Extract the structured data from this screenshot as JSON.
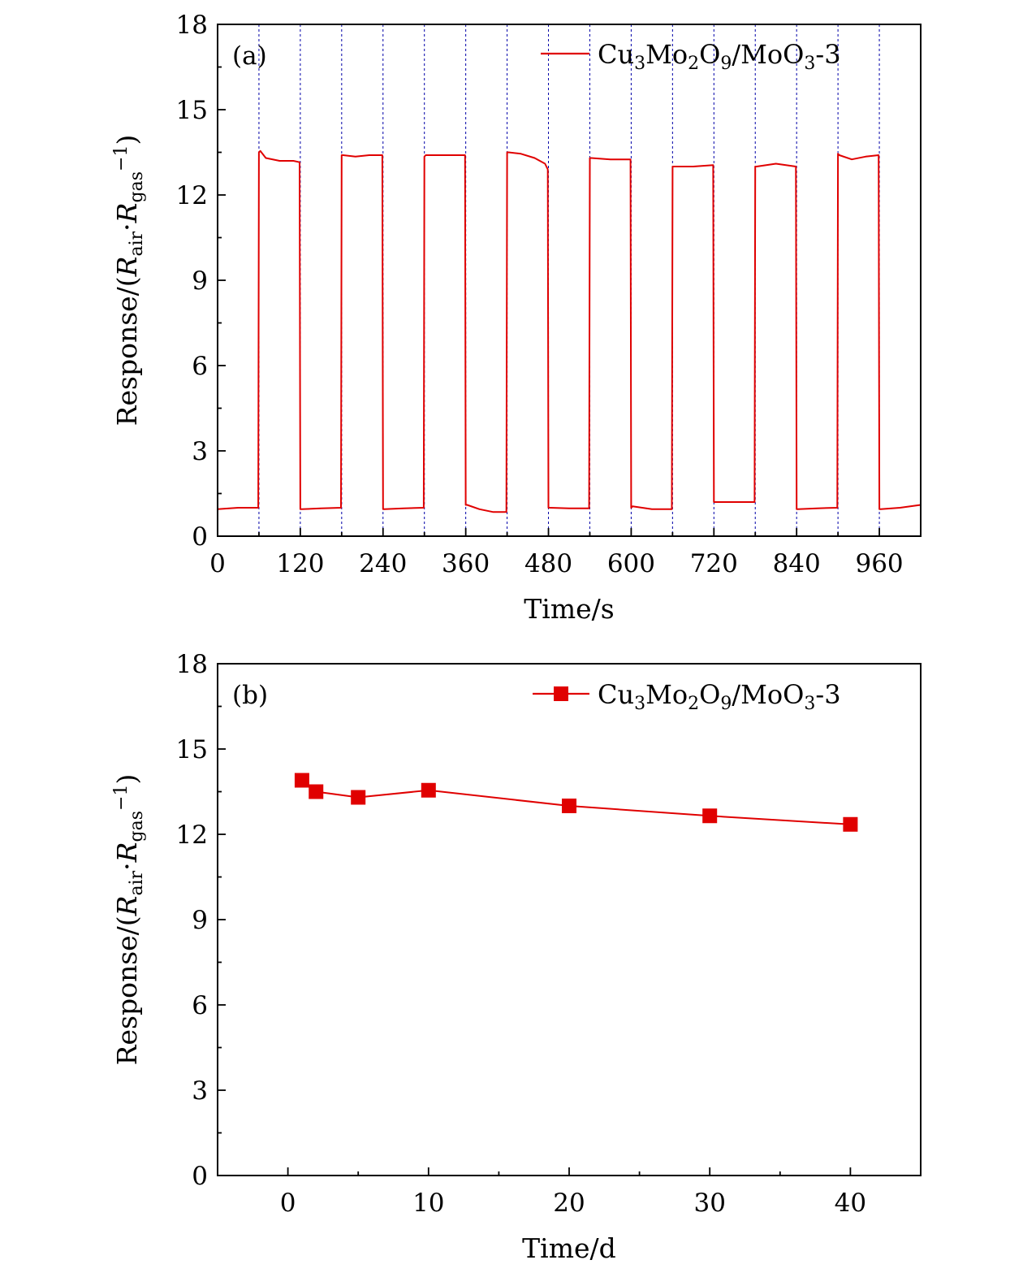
{
  "colors": {
    "series": "#e00000",
    "cycle_lines": "#0000a8",
    "axis": "#000000"
  },
  "chart_data": [
    {
      "panel_label": "(a)",
      "type": "line",
      "xlabel": "Time/s",
      "ylabel": "Response/(R_air·R_gas^−1)",
      "xlim": [
        0,
        1020
      ],
      "ylim": [
        0,
        18
      ],
      "xticks": [
        0,
        120,
        240,
        360,
        480,
        600,
        720,
        840,
        960
      ],
      "yticks": [
        0,
        3,
        6,
        9,
        12,
        15,
        18
      ],
      "grid": false,
      "legend_position": "top-right",
      "vertical_dashed_lines_at": [
        60,
        120,
        180,
        240,
        300,
        360,
        420,
        480,
        540,
        600,
        660,
        720,
        780,
        840,
        900,
        960
      ],
      "series": [
        {
          "name": "Cu3Mo2O9/MoO3-3",
          "legend": {
            "base1": "Cu",
            "sub1": "3",
            "base2": "Mo",
            "sub2": "2",
            "base3": "O",
            "sub3": "9",
            "base4": "/MoO",
            "sub4": "3",
            "suffix": "-3"
          },
          "x": [
            0,
            30,
            59,
            60,
            62,
            70,
            90,
            110,
            119,
            120,
            122,
            150,
            179,
            180,
            182,
            200,
            220,
            239,
            240,
            242,
            270,
            299,
            300,
            302,
            330,
            359,
            360,
            362,
            380,
            400,
            419,
            420,
            422,
            440,
            460,
            475,
            479,
            480,
            482,
            510,
            539,
            540,
            542,
            570,
            599,
            600,
            602,
            630,
            659,
            660,
            662,
            690,
            719,
            720,
            722,
            750,
            779,
            780,
            782,
            810,
            839,
            840,
            842,
            870,
            899,
            900,
            902,
            920,
            940,
            959,
            960,
            962,
            990,
            1020
          ],
          "y": [
            0.95,
            1.0,
            1.0,
            13.5,
            13.55,
            13.3,
            13.2,
            13.2,
            13.15,
            0.95,
            0.95,
            0.98,
            1.0,
            13.4,
            13.4,
            13.35,
            13.4,
            13.4,
            0.95,
            0.95,
            0.98,
            1.0,
            13.35,
            13.4,
            13.4,
            13.4,
            1.1,
            1.1,
            0.95,
            0.85,
            0.85,
            13.5,
            13.5,
            13.45,
            13.3,
            13.1,
            12.9,
            1.0,
            1.0,
            0.98,
            0.98,
            13.3,
            13.3,
            13.25,
            13.25,
            1.0,
            1.05,
            0.95,
            0.95,
            13.0,
            13.0,
            13.0,
            13.05,
            1.2,
            1.2,
            1.2,
            1.2,
            13.0,
            13.0,
            13.1,
            13.0,
            0.95,
            0.95,
            0.98,
            1.0,
            13.45,
            13.4,
            13.25,
            13.35,
            13.4,
            0.95,
            0.95,
            1.0,
            1.1
          ]
        }
      ]
    },
    {
      "panel_label": "(b)",
      "type": "line",
      "xlabel": "Time/d",
      "ylabel": "Response/(R_air·R_gas^−1)",
      "xlim": [
        -5,
        45
      ],
      "ylim": [
        0,
        18
      ],
      "xticks": [
        0,
        10,
        20,
        30,
        40
      ],
      "yticks": [
        0,
        3,
        6,
        9,
        12,
        15,
        18
      ],
      "grid": false,
      "legend_position": "top-right",
      "marker": "square",
      "series": [
        {
          "name": "Cu3Mo2O9/MoO3-3",
          "legend": {
            "base1": "Cu",
            "sub1": "3",
            "base2": "Mo",
            "sub2": "2",
            "base3": "O",
            "sub3": "9",
            "base4": "/MoO",
            "sub4": "3",
            "suffix": "-3"
          },
          "x": [
            1,
            2,
            5,
            10,
            20,
            30,
            40
          ],
          "y": [
            13.9,
            13.5,
            13.3,
            13.55,
            13.0,
            12.65,
            12.35
          ]
        }
      ]
    }
  ]
}
